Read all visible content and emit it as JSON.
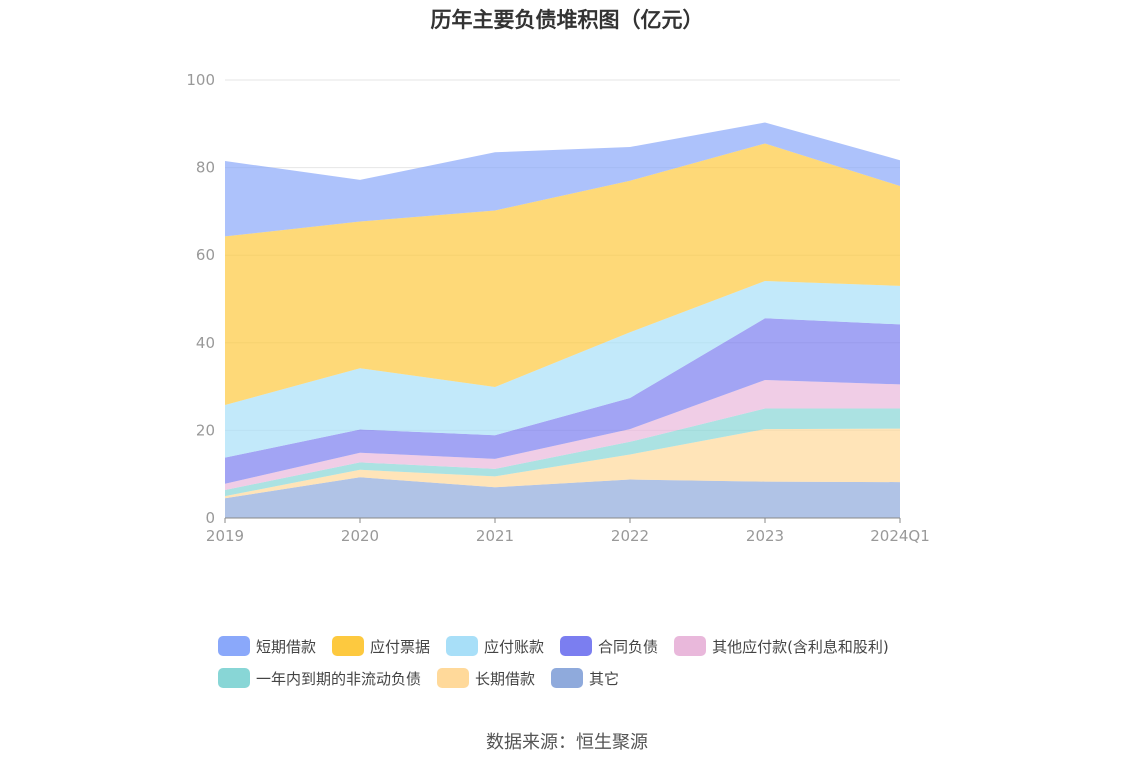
{
  "chart_data": {
    "type": "area",
    "stacked": true,
    "title": "历年主要负债堆积图（亿元）",
    "categories": [
      "2019",
      "2020",
      "2021",
      "2022",
      "2023",
      "2024Q1"
    ],
    "ylim": [
      0,
      100
    ],
    "yticks": [
      0,
      20,
      40,
      60,
      80,
      100
    ],
    "grid": true,
    "legend_position": "bottom",
    "series": [
      {
        "name": "其它",
        "color": "#8faadc",
        "values": [
          4.5,
          9.3,
          7.0,
          8.8,
          8.3,
          8.2
        ]
      },
      {
        "name": "长期借款",
        "color": "#ffd99a",
        "values": [
          0.5,
          1.7,
          2.5,
          5.7,
          12.0,
          12.2
        ]
      },
      {
        "name": "一年内到期的非流动负债",
        "color": "#88d6d6",
        "values": [
          1.4,
          1.7,
          1.7,
          2.9,
          4.7,
          4.6
        ]
      },
      {
        "name": "其他应付款(含利息和股利)",
        "color": "#e9b8db",
        "values": [
          1.4,
          2.2,
          2.3,
          2.9,
          6.5,
          5.5
        ]
      },
      {
        "name": "合同负债",
        "color": "#7b7ef0",
        "values": [
          6.0,
          5.3,
          5.4,
          7.1,
          14.1,
          13.7
        ]
      },
      {
        "name": "应付账款",
        "color": "#a8dff8",
        "values": [
          12.0,
          14.0,
          11.0,
          15.0,
          8.5,
          8.8
        ]
      },
      {
        "name": "应付票据",
        "color": "#fdc93f",
        "values": [
          38.5,
          33.5,
          40.3,
          34.6,
          31.4,
          22.8
        ]
      },
      {
        "name": "短期借款",
        "color": "#8aa8fa",
        "values": [
          17.2,
          9.5,
          13.3,
          7.7,
          4.8,
          5.9
        ]
      }
    ]
  },
  "legend": {
    "rows": [
      [
        {
          "label": "短期借款",
          "color": "#8aa8fa"
        },
        {
          "label": "应付票据",
          "color": "#fdc93f"
        },
        {
          "label": "应付账款",
          "color": "#a8dff8"
        },
        {
          "label": "合同负债",
          "color": "#7b7ef0"
        },
        {
          "label": "其他应付款(含利息和股利)",
          "color": "#e9b8db"
        }
      ],
      [
        {
          "label": "一年内到期的非流动负债",
          "color": "#88d6d6"
        },
        {
          "label": "长期借款",
          "color": "#ffd99a"
        },
        {
          "label": "其它",
          "color": "#8faadc"
        }
      ]
    ]
  },
  "source": "数据来源：恒生聚源"
}
